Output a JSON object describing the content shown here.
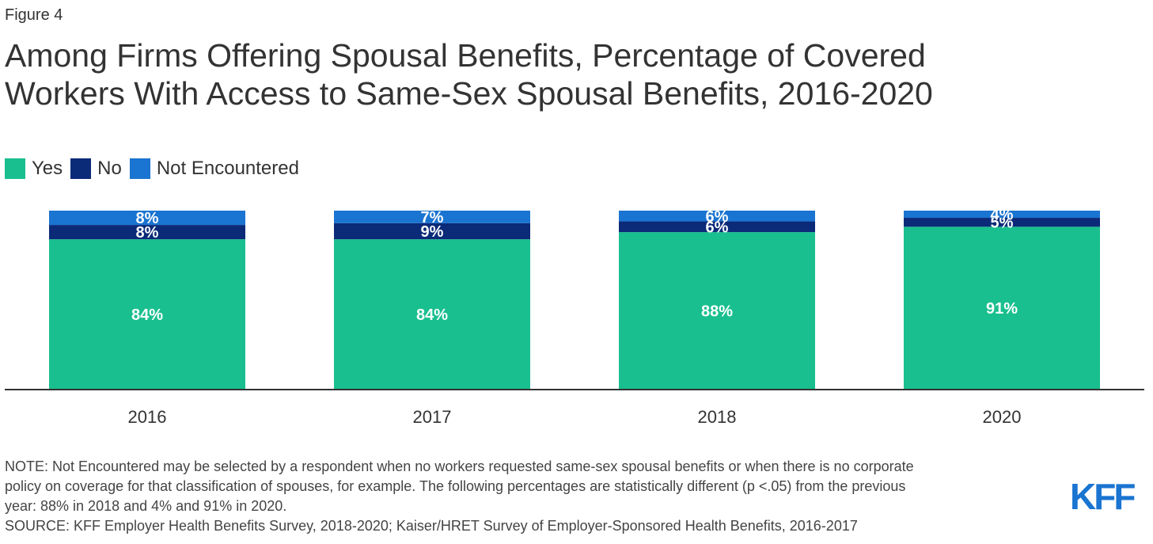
{
  "figure_label": "Figure 4",
  "title_lines": [
    "Among Firms Offering Spousal Benefits, Percentage of Covered",
    "Workers With Access to Same-Sex Spousal Benefits, 2016-2020"
  ],
  "logo_text": "KFF",
  "notes": {
    "note1": "NOTE: Not Encountered may be selected by a respondent when no workers requested same-sex spousal benefits or when there is no corporate",
    "note2": "policy on coverage for that classification of spouses, for example. The following percentages are statistically different (p <.05) from the previous",
    "note3": "year: 88% in 2018 and 4% and 91% in 2020.",
    "source": "SOURCE: KFF Employer Health Benefits Survey, 2018-2020; Kaiser/HRET Survey of Employer-Sponsored Health Benefits, 2016-2017"
  },
  "chart_data": {
    "type": "bar",
    "stacked": true,
    "categories": [
      "2016",
      "2017",
      "2018",
      "2020"
    ],
    "series": [
      {
        "name": "Yes",
        "color": "#19bf8f",
        "values": [
          84,
          84,
          88,
          91
        ],
        "labels": [
          "84%",
          "84%",
          "88%",
          "91%"
        ]
      },
      {
        "name": "No",
        "color": "#0b2a78",
        "values": [
          8,
          9,
          6,
          5
        ],
        "labels": [
          "8%",
          "9%",
          "6%",
          "5%"
        ]
      },
      {
        "name": "Not Encountered",
        "color": "#1a74d1",
        "values": [
          8,
          7,
          6,
          4
        ],
        "labels": [
          "8%",
          "7%",
          "6%",
          "4%"
        ]
      }
    ],
    "ylim": [
      0,
      100
    ],
    "legend_position": "top-left",
    "grid": false
  }
}
